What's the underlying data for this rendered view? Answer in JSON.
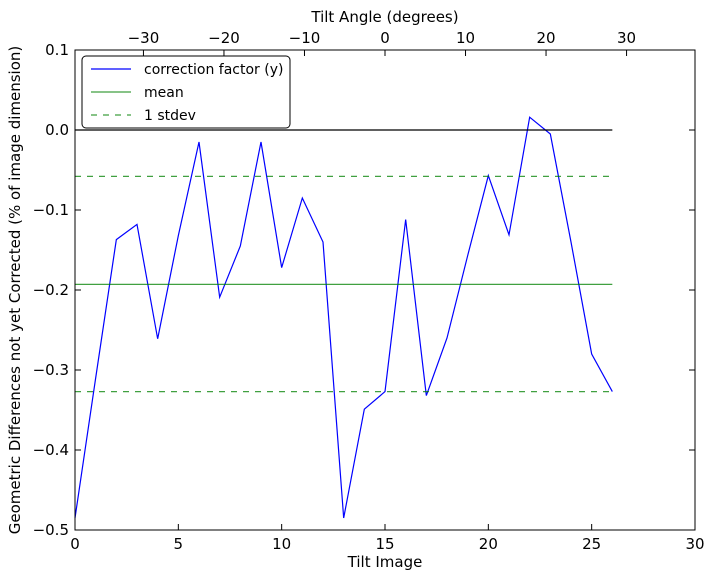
{
  "chart_data": {
    "type": "line",
    "xlabel": "Tilt Image",
    "ylabel": "Geometric Differences not yet Corrected (% of image dimension)",
    "top_xlabel": "Tilt Angle (degrees)",
    "xlim": [
      0,
      30
    ],
    "ylim": [
      -0.5,
      0.1
    ],
    "top_xlim": [
      -38.5,
      38.5
    ],
    "x_ticks": [
      0,
      5,
      10,
      15,
      20,
      25,
      30
    ],
    "x_tick_labels": [
      "0",
      "5",
      "10",
      "15",
      "20",
      "25",
      "30"
    ],
    "y_ticks": [
      -0.5,
      -0.4,
      -0.3,
      -0.2,
      -0.1,
      0.0,
      0.1
    ],
    "y_tick_labels": [
      "−0.5",
      "−0.4",
      "−0.3",
      "−0.2",
      "−0.1",
      "0.0",
      "0.1"
    ],
    "top_x_ticks": [
      -30,
      -20,
      -10,
      0,
      10,
      20,
      30
    ],
    "top_x_tick_labels": [
      "−30",
      "−20",
      "−10",
      "0",
      "10",
      "20",
      "30"
    ],
    "grid": false,
    "legend_position": "top-left",
    "series": [
      {
        "name": "correction factor (y)",
        "color": "#0000ff",
        "style": "solid",
        "x": [
          0,
          1,
          2,
          3,
          4,
          5,
          6,
          7,
          8,
          9,
          10,
          11,
          12,
          13,
          14,
          15,
          16,
          17,
          18,
          19,
          20,
          21,
          22,
          23,
          24,
          25,
          26
        ],
        "y": [
          -0.485,
          -0.31,
          -0.137,
          -0.118,
          -0.261,
          -0.132,
          -0.015,
          -0.209,
          -0.145,
          -0.015,
          -0.172,
          -0.085,
          -0.14,
          -0.485,
          -0.349,
          -0.327,
          -0.112,
          -0.332,
          -0.26,
          -0.157,
          -0.057,
          -0.131,
          0.016,
          -0.005,
          -0.14,
          -0.28,
          -0.327
        ]
      },
      {
        "name": "mean",
        "color": "#008000",
        "style": "solid",
        "x": [
          0,
          26
        ],
        "y": [
          -0.193,
          -0.193
        ]
      },
      {
        "name": "1 stdev",
        "color": "#008000",
        "style": "dashed",
        "x": [
          0,
          26
        ],
        "y": [
          -0.058,
          -0.058
        ]
      },
      {
        "name": "",
        "color": "#008000",
        "style": "dashed",
        "x": [
          0,
          26
        ],
        "y": [
          -0.327,
          -0.327
        ]
      },
      {
        "name": "",
        "color": "#000000",
        "style": "solid",
        "x": [
          0,
          26
        ],
        "y": [
          0.0,
          0.0
        ]
      }
    ]
  }
}
